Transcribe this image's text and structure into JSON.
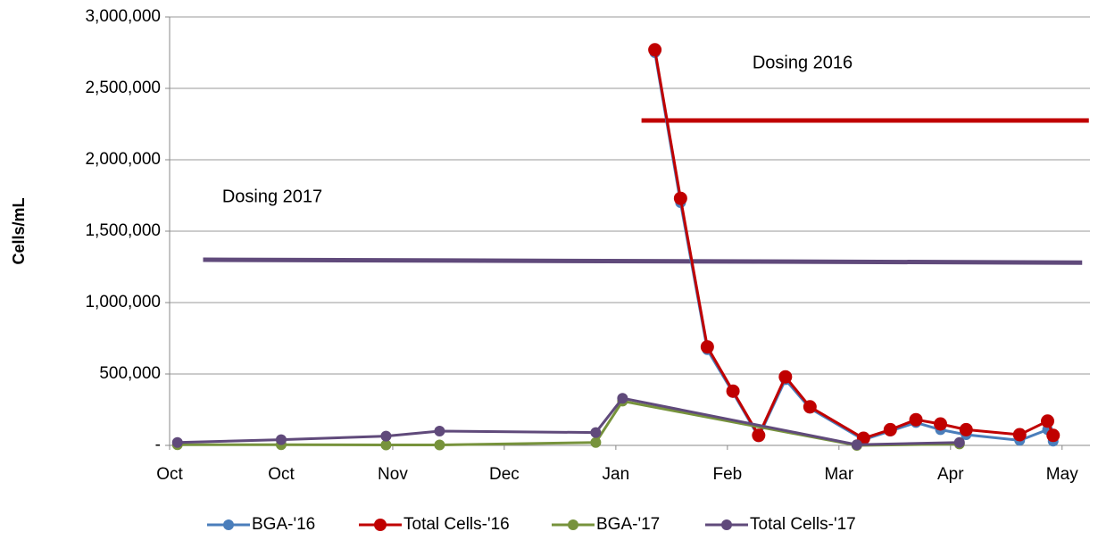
{
  "chart_data": {
    "type": "line",
    "ylabel": "Cells/mL",
    "xlim": [
      0,
      8.25
    ],
    "xticks": [
      {
        "value": 0,
        "label": "Oct"
      },
      {
        "value": 1,
        "label": "Oct"
      },
      {
        "value": 2,
        "label": "Nov"
      },
      {
        "value": 3,
        "label": "Dec"
      },
      {
        "value": 4,
        "label": "Jan"
      },
      {
        "value": 5,
        "label": "Feb"
      },
      {
        "value": 6,
        "label": "Mar"
      },
      {
        "value": 7,
        "label": "Apr"
      },
      {
        "value": 8,
        "label": "May"
      }
    ],
    "ylim": [
      0,
      3000000
    ],
    "yticks": [
      {
        "value": 0,
        "label": "-"
      },
      {
        "value": 500000,
        "label": "500,000"
      },
      {
        "value": 1000000,
        "label": "1,000,000"
      },
      {
        "value": 1500000,
        "label": "1,500,000"
      },
      {
        "value": 2000000,
        "label": "2,000,000"
      },
      {
        "value": 2500000,
        "label": "2,500,000"
      },
      {
        "value": 3000000,
        "label": "3,000,000"
      }
    ],
    "grid": true,
    "legend": "bottom",
    "series": [
      {
        "name": "BGA-'16",
        "color": "#4a7ebb",
        "x": [
          4.35,
          4.58,
          4.82,
          5.05,
          5.28,
          5.52,
          5.74,
          6.22,
          6.46,
          6.69,
          6.91,
          7.14,
          7.62,
          7.87,
          7.92
        ],
        "values": [
          2750000,
          1700000,
          670000,
          370000,
          60000,
          460000,
          260000,
          40000,
          100000,
          160000,
          110000,
          75000,
          35000,
          110000,
          30000
        ]
      },
      {
        "name": "Total Cells-'16",
        "color": "#c00000",
        "x": [
          4.35,
          4.58,
          4.82,
          5.05,
          5.28,
          5.52,
          5.74,
          6.22,
          6.46,
          6.69,
          6.91,
          7.14,
          7.62,
          7.87,
          7.92
        ],
        "values": [
          2770000,
          1730000,
          690000,
          380000,
          70000,
          480000,
          270000,
          50000,
          110000,
          180000,
          150000,
          110000,
          75000,
          170000,
          70000
        ]
      },
      {
        "name": "BGA-'17",
        "color": "#77933c",
        "x": [
          0.07,
          1.0,
          1.94,
          2.42,
          3.82,
          4.06,
          6.16,
          7.08
        ],
        "values": [
          5000,
          5000,
          3000,
          3000,
          20000,
          310000,
          0,
          10000
        ]
      },
      {
        "name": "Total Cells-'17",
        "color": "#604a7b",
        "x": [
          0.07,
          1.0,
          1.94,
          2.42,
          3.82,
          4.06,
          6.16,
          7.08
        ],
        "values": [
          20000,
          40000,
          65000,
          100000,
          90000,
          330000,
          5000,
          20000
        ]
      }
    ],
    "annotations": [
      {
        "text": "Dosing 2016",
        "color": "#c00000",
        "x": [
          4.23,
          8.24
        ],
        "values": [
          2275000,
          2275000
        ]
      },
      {
        "text": "Dosing 2017",
        "color": "#604a7b",
        "x": [
          0.3,
          8.18
        ],
        "values": [
          1300000,
          1280000
        ]
      }
    ]
  }
}
